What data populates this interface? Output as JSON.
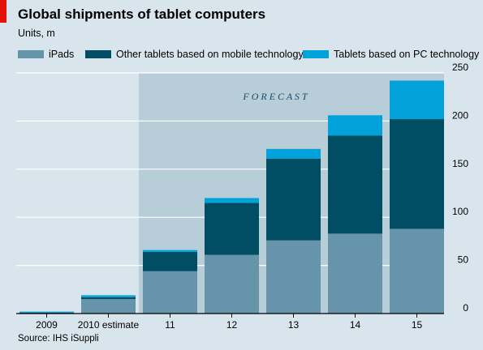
{
  "header": {
    "title": "Global shipments of tablet computers",
    "subtitle": "Units, m"
  },
  "legend": {
    "items": [
      {
        "label": "iPads",
        "color": "#6694ab"
      },
      {
        "label": "Other tablets based on mobile technology",
        "color": "#014d64"
      },
      {
        "label": "Tablets based on PC technology",
        "color": "#00a2d9"
      }
    ]
  },
  "forecast_label": "F O R E C A S T",
  "source": "Source: IHS iSuppli",
  "chart_data": {
    "type": "bar",
    "stacked": true,
    "categories": [
      "2009",
      "2010 estimate",
      "11",
      "12",
      "13",
      "14",
      "15"
    ],
    "series": [
      {
        "name": "iPads",
        "values": [
          0,
          15,
          44,
          61,
          76,
          83,
          88
        ]
      },
      {
        "name": "Other tablets based on mobile technology",
        "values": [
          1,
          2,
          20,
          54,
          85,
          102,
          114
        ]
      },
      {
        "name": "Tablets based on PC technology",
        "values": [
          1,
          2,
          2,
          5,
          10,
          21,
          40
        ]
      }
    ],
    "ylim": [
      0,
      250
    ],
    "yticks": [
      0,
      50,
      100,
      150,
      200,
      250
    ],
    "ytick_position": "right",
    "grid": true,
    "forecast_start_category": "11",
    "colors": [
      "#6694ab",
      "#014d64",
      "#00a2d9"
    ]
  }
}
